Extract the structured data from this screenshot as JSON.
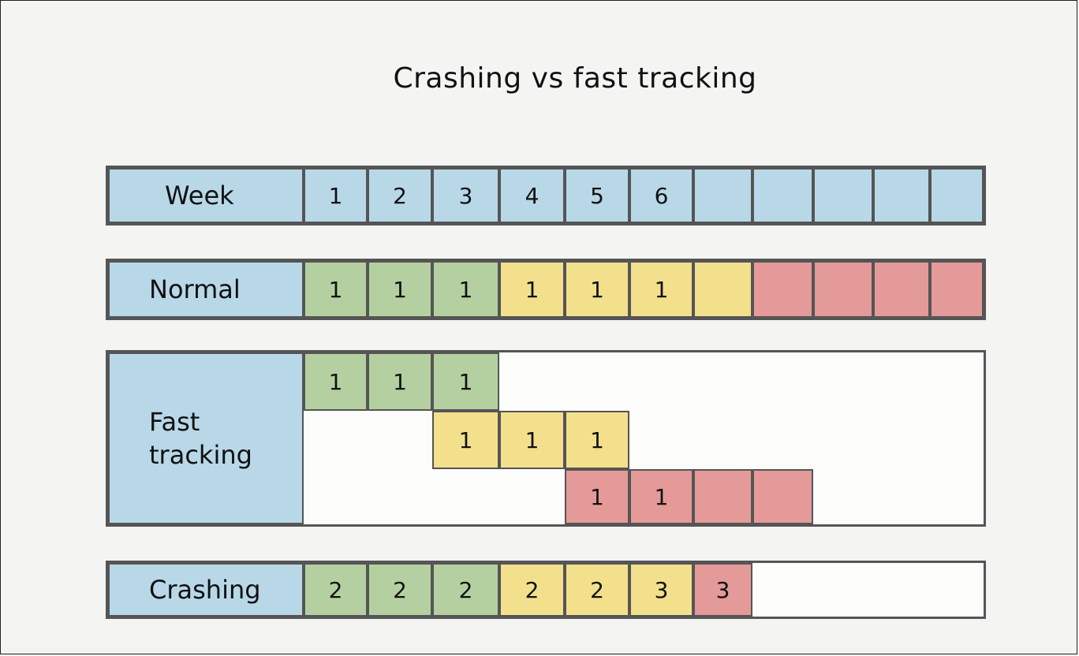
{
  "title": "Crashing vs fast tracking",
  "colors": {
    "blue": "#b8d8e8",
    "green": "#b5d0a0",
    "yellow": "#f3e08c",
    "red": "#e49a98",
    "border": "#555555"
  },
  "rows": {
    "week": {
      "label": "Week",
      "cells": [
        {
          "text": "1",
          "color": "blue"
        },
        {
          "text": "2",
          "color": "blue"
        },
        {
          "text": "3",
          "color": "blue"
        },
        {
          "text": "4",
          "color": "blue"
        },
        {
          "text": "5",
          "color": "blue"
        },
        {
          "text": "6",
          "color": "blue"
        },
        {
          "text": "",
          "color": "blue"
        },
        {
          "text": "",
          "color": "blue"
        },
        {
          "text": "",
          "color": "blue"
        },
        {
          "text": "",
          "color": "blue"
        },
        {
          "text": "",
          "color": "blue"
        }
      ]
    },
    "normal": {
      "label": "Normal",
      "cells": [
        {
          "text": "1",
          "color": "green"
        },
        {
          "text": "1",
          "color": "green"
        },
        {
          "text": "1",
          "color": "green"
        },
        {
          "text": "1",
          "color": "yellow"
        },
        {
          "text": "1",
          "color": "yellow"
        },
        {
          "text": "1",
          "color": "yellow"
        },
        {
          "text": "",
          "color": "yellow"
        },
        {
          "text": "",
          "color": "red"
        },
        {
          "text": "",
          "color": "red"
        },
        {
          "text": "",
          "color": "red"
        },
        {
          "text": "",
          "color": "red"
        }
      ]
    },
    "fast_tracking": {
      "label_line1": "Fast",
      "label_line2": "tracking",
      "lines": [
        {
          "start": 0,
          "cells": [
            {
              "text": "1",
              "color": "green"
            },
            {
              "text": "1",
              "color": "green"
            },
            {
              "text": "1",
              "color": "green"
            }
          ]
        },
        {
          "start": 2,
          "cells": [
            {
              "text": "1",
              "color": "yellow"
            },
            {
              "text": "1",
              "color": "yellow"
            },
            {
              "text": "1",
              "color": "yellow"
            }
          ]
        },
        {
          "start": 4,
          "cells": [
            {
              "text": "1",
              "color": "red"
            },
            {
              "text": "1",
              "color": "red"
            },
            {
              "text": "",
              "color": "red"
            },
            {
              "text": "",
              "color": "red"
            }
          ]
        }
      ]
    },
    "crashing": {
      "label": "Crashing",
      "cells": [
        {
          "text": "2",
          "color": "green"
        },
        {
          "text": "2",
          "color": "green"
        },
        {
          "text": "2",
          "color": "green"
        },
        {
          "text": "2",
          "color": "yellow"
        },
        {
          "text": "2",
          "color": "yellow"
        },
        {
          "text": "3",
          "color": "yellow"
        },
        {
          "text": "3",
          "color": "red"
        }
      ]
    }
  }
}
